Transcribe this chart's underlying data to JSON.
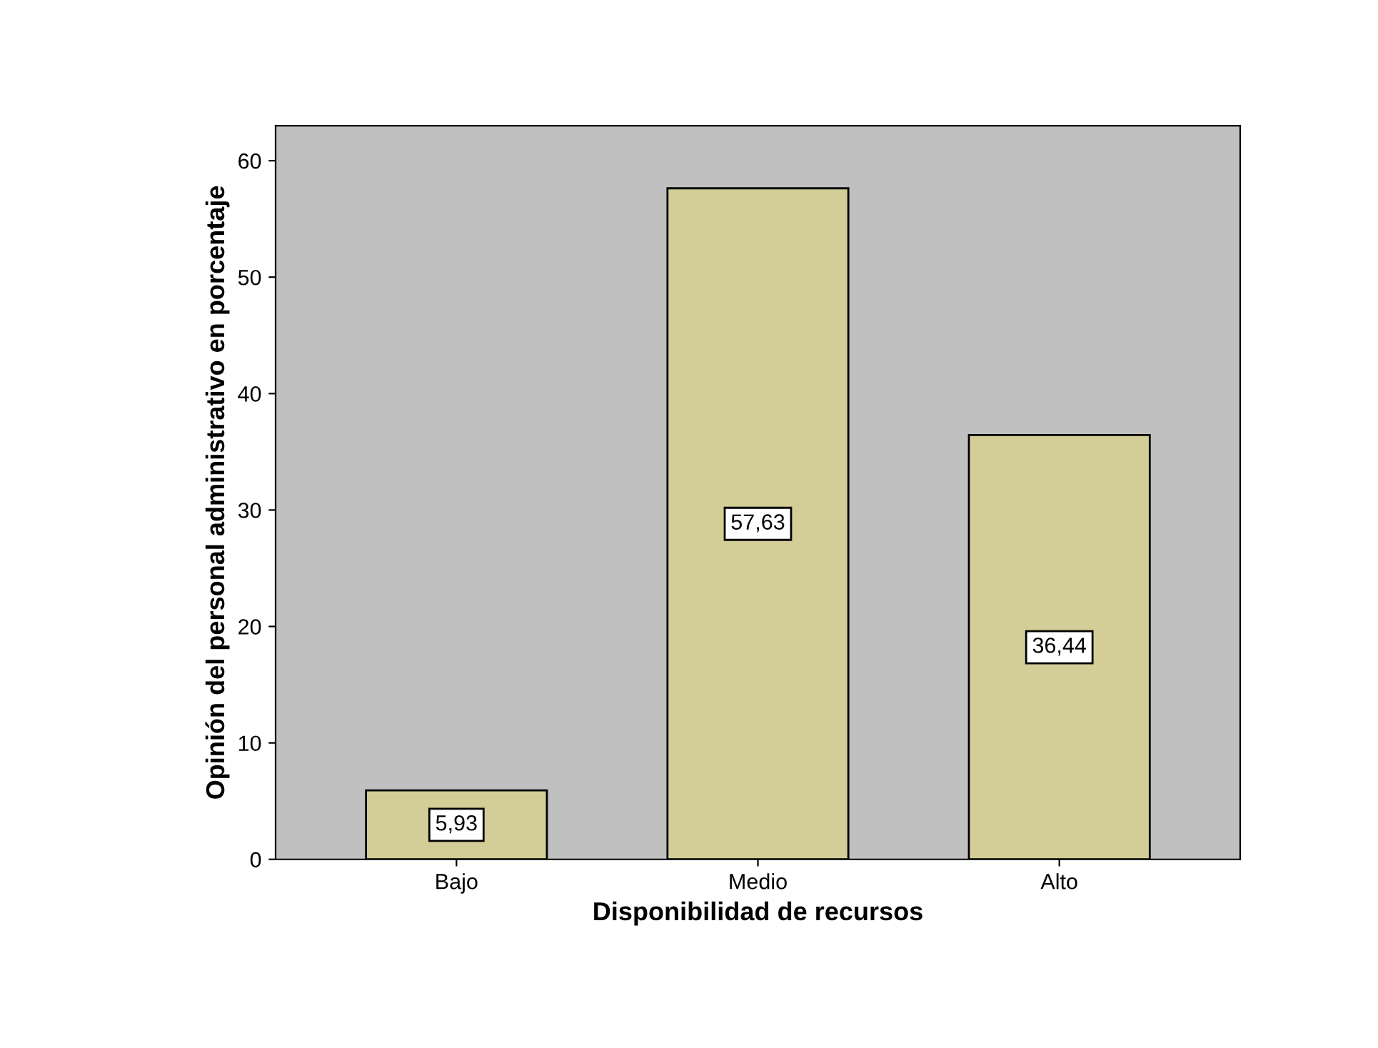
{
  "chart_data": {
    "type": "bar",
    "xlabel": "Disponibilidad de recursos",
    "ylabel": "Opinión del personal administrativo en porcentaje",
    "categories": [
      "Bajo",
      "Medio",
      "Alto"
    ],
    "values": [
      5.93,
      57.63,
      36.44
    ],
    "value_labels": [
      "5,93",
      "57,63",
      "36,44"
    ],
    "color": "#d3ce97",
    "ylim": [
      0,
      63
    ],
    "yticks": [
      0,
      10,
      20,
      30,
      40,
      50,
      60
    ],
    "grid": false
  }
}
